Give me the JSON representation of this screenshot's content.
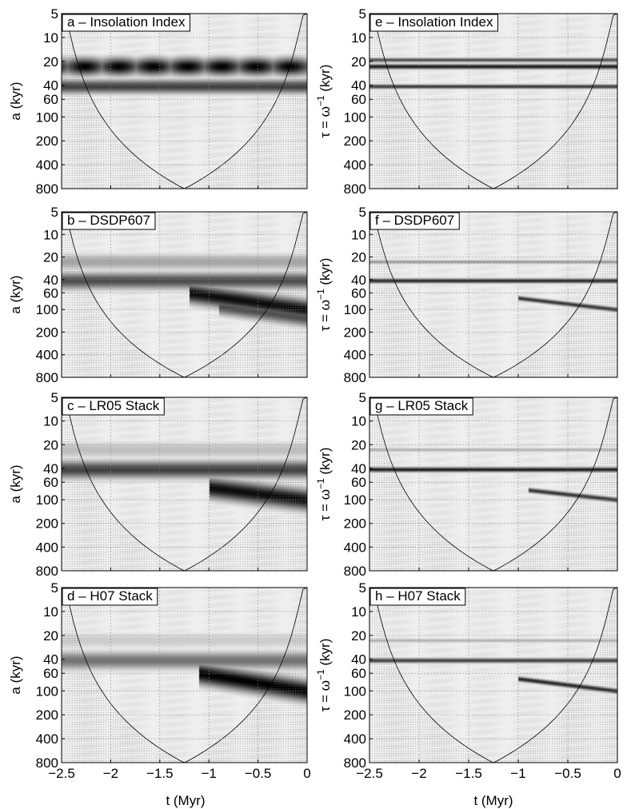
{
  "figure": {
    "xlabel": "t (Myr)",
    "xticks": [
      {
        "v": -2.5,
        "label": "−2.5"
      },
      {
        "v": -2,
        "label": "−2"
      },
      {
        "v": -1.5,
        "label": "−1.5"
      },
      {
        "v": -1,
        "label": "−1"
      },
      {
        "v": -0.5,
        "label": "−0.5"
      },
      {
        "v": 0,
        "label": "0"
      }
    ],
    "yticks": [
      {
        "v": 5,
        "label": "5"
      },
      {
        "v": 10,
        "label": "10"
      },
      {
        "v": 20,
        "label": "20"
      },
      {
        "v": 40,
        "label": "40"
      },
      {
        "v": 60,
        "label": "60"
      },
      {
        "v": 100,
        "label": "100"
      },
      {
        "v": 200,
        "label": "200"
      },
      {
        "v": 400,
        "label": "400"
      },
      {
        "v": 800,
        "label": "800"
      }
    ],
    "ylabel_left": "a (kyr)",
    "ylabel_right_prefix": "τ = ω",
    "ylabel_right_sup": "−1",
    "ylabel_right_suffix": " (kyr)"
  },
  "chart_data": [
    {
      "type": "heatmap",
      "title": "a – Insolation Index",
      "xlabel": "",
      "ylabel": "a (kyr)",
      "xlim": [
        -2.5,
        0
      ],
      "ylim": [
        5,
        800
      ],
      "yscale": "log",
      "cone_of_influence": true,
      "ridges": [
        {
          "period": 23,
          "strength": 1.0,
          "width": 0.05,
          "banded": true
        },
        {
          "period": 41,
          "strength": 0.75,
          "width": 0.04
        },
        {
          "period": 100,
          "strength": 0.08,
          "width": 0.1
        }
      ]
    },
    {
      "type": "heatmap",
      "title": "e – Insolation Index",
      "xlabel": "",
      "ylabel": "τ = ω^−1 (kyr)",
      "xlim": [
        -2.5,
        0
      ],
      "ylim": [
        5,
        800
      ],
      "yscale": "log",
      "cone_of_influence": true,
      "ridges": [
        {
          "period": 19,
          "strength": 0.7,
          "width": 0.012
        },
        {
          "period": 23,
          "strength": 0.9,
          "width": 0.014
        },
        {
          "period": 41,
          "strength": 0.8,
          "width": 0.012
        }
      ]
    },
    {
      "type": "heatmap",
      "title": "b – DSDP607",
      "xlabel": "",
      "ylabel": "a (kyr)",
      "xlim": [
        -2.5,
        0
      ],
      "ylim": [
        5,
        800
      ],
      "yscale": "log",
      "cone_of_influence": true,
      "ridges": [
        {
          "period": 41,
          "strength": 0.7,
          "width": 0.05
        },
        {
          "period": 23,
          "strength": 0.35,
          "width": 0.05
        },
        {
          "from_t": -1.2,
          "from_p": 60,
          "to_t": 0,
          "to_p": 100,
          "strength": 0.95,
          "width": 0.06
        },
        {
          "from_t": -0.9,
          "from_p": 90,
          "to_t": 0,
          "to_p": 130,
          "strength": 0.7,
          "width": 0.05
        }
      ]
    },
    {
      "type": "heatmap",
      "title": "f – DSDP607",
      "xlabel": "",
      "ylabel": "τ = ω^−1 (kyr)",
      "xlim": [
        -2.5,
        0
      ],
      "ylim": [
        5,
        800
      ],
      "yscale": "log",
      "cone_of_influence": true,
      "ridges": [
        {
          "period": 41,
          "strength": 0.85,
          "width": 0.014
        },
        {
          "period": 23,
          "strength": 0.4,
          "width": 0.012
        },
        {
          "from_t": -1.0,
          "from_p": 70,
          "to_t": 0,
          "to_p": 100,
          "strength": 0.8,
          "width": 0.014
        }
      ]
    },
    {
      "type": "heatmap",
      "title": "c – LR05 Stack",
      "xlabel": "",
      "ylabel": "a (kyr)",
      "xlim": [
        -2.5,
        0
      ],
      "ylim": [
        5,
        800
      ],
      "yscale": "log",
      "cone_of_influence": true,
      "ridges": [
        {
          "period": 41,
          "strength": 0.75,
          "width": 0.05
        },
        {
          "period": 23,
          "strength": 0.25,
          "width": 0.05
        },
        {
          "from_t": -1.0,
          "from_p": 70,
          "to_t": 0,
          "to_p": 100,
          "strength": 0.95,
          "width": 0.06
        }
      ]
    },
    {
      "type": "heatmap",
      "title": "g – LR05 Stack",
      "xlabel": "",
      "ylabel": "τ = ω^−1 (kyr)",
      "xlim": [
        -2.5,
        0
      ],
      "ylim": [
        5,
        800
      ],
      "yscale": "log",
      "cone_of_influence": true,
      "ridges": [
        {
          "period": 41,
          "strength": 0.9,
          "width": 0.014
        },
        {
          "period": 23,
          "strength": 0.3,
          "width": 0.012
        },
        {
          "from_t": -0.9,
          "from_p": 75,
          "to_t": 0,
          "to_p": 100,
          "strength": 0.8,
          "width": 0.014
        }
      ]
    },
    {
      "type": "heatmap",
      "title": "d – H07 Stack",
      "xlabel": "t (Myr)",
      "ylabel": "a (kyr)",
      "xlim": [
        -2.5,
        0
      ],
      "ylim": [
        5,
        800
      ],
      "yscale": "log",
      "cone_of_influence": true,
      "ridges": [
        {
          "period": 41,
          "strength": 0.55,
          "width": 0.05
        },
        {
          "period": 23,
          "strength": 0.2,
          "width": 0.05
        },
        {
          "from_t": -1.1,
          "from_p": 60,
          "to_t": 0,
          "to_p": 100,
          "strength": 1.0,
          "width": 0.06
        }
      ]
    },
    {
      "type": "heatmap",
      "title": "h – H07 Stack",
      "xlabel": "t (Myr)",
      "ylabel": "τ = ω^−1 (kyr)",
      "xlim": [
        -2.5,
        0
      ],
      "ylim": [
        5,
        800
      ],
      "yscale": "log",
      "cone_of_influence": true,
      "ridges": [
        {
          "period": 41,
          "strength": 0.75,
          "width": 0.014
        },
        {
          "period": 23,
          "strength": 0.3,
          "width": 0.012
        },
        {
          "from_t": -1.0,
          "from_p": 70,
          "to_t": 0,
          "to_p": 100,
          "strength": 0.85,
          "width": 0.014
        }
      ]
    }
  ]
}
